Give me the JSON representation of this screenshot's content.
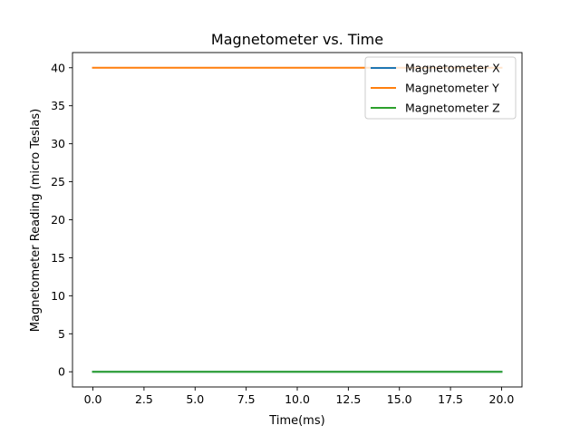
{
  "chart_data": {
    "type": "line",
    "title": "Magnetometer vs. Time",
    "xlabel": "Time(ms)",
    "ylabel": "Magnetometer Reading (micro Teslas)",
    "xlim": [
      -1.0,
      21.0
    ],
    "ylim": [
      -2.0,
      42.0
    ],
    "xticks": [
      0.0,
      2.5,
      5.0,
      7.5,
      10.0,
      12.5,
      15.0,
      17.5,
      20.0
    ],
    "xtick_labels": [
      "0.0",
      "2.5",
      "5.0",
      "7.5",
      "10.0",
      "12.5",
      "15.0",
      "17.5",
      "20.0"
    ],
    "yticks": [
      0,
      5,
      10,
      15,
      20,
      25,
      30,
      35,
      40
    ],
    "ytick_labels": [
      "0",
      "5",
      "10",
      "15",
      "20",
      "25",
      "30",
      "35",
      "40"
    ],
    "grid": false,
    "legend_position": "top-right",
    "series": [
      {
        "name": "Magnetometer X",
        "color": "#1f77b4",
        "x": [
          0,
          20
        ],
        "y": [
          0,
          0
        ]
      },
      {
        "name": "Magnetometer Y",
        "color": "#ff7f0e",
        "x": [
          0,
          20
        ],
        "y": [
          40,
          40
        ]
      },
      {
        "name": "Magnetometer Z",
        "color": "#2ca02c",
        "x": [
          0,
          20
        ],
        "y": [
          0,
          0
        ]
      }
    ]
  }
}
